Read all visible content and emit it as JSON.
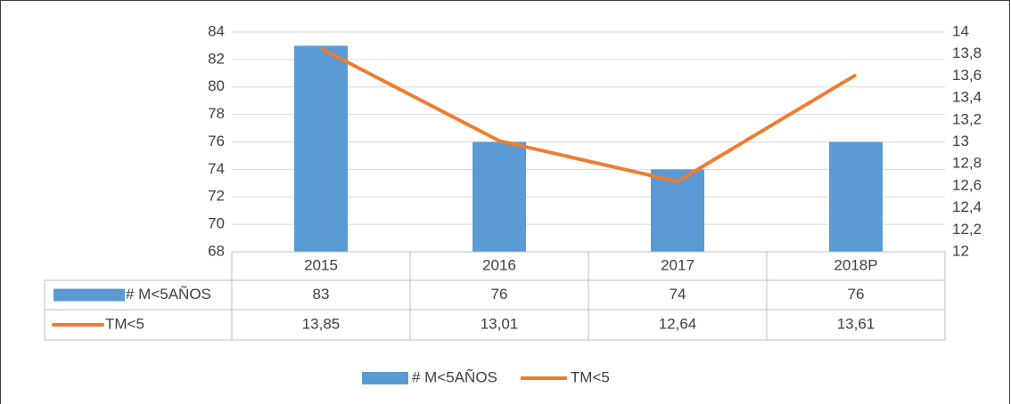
{
  "chart_data": {
    "type": "combo",
    "categories": [
      "2015",
      "2016",
      "2017",
      "2018P"
    ],
    "series": [
      {
        "name": "# M<5AÑOS",
        "type": "bar",
        "color": "#5b9bd5",
        "values": [
          83,
          76,
          74,
          76
        ]
      },
      {
        "name": "TM<5",
        "type": "line",
        "color": "#ed7d31",
        "axis": "y2",
        "values": [
          13.85,
          13.01,
          12.64,
          13.61
        ],
        "value_labels": [
          "13,85",
          "13,01",
          "12,64",
          "13,61"
        ]
      }
    ],
    "ylim": [
      68,
      84
    ],
    "yticks": [
      68,
      70,
      72,
      74,
      76,
      78,
      80,
      82,
      84
    ],
    "y2lim": [
      12,
      14
    ],
    "y2ticks": [
      12,
      {
        "value": 12.2,
        "label": "12,2"
      },
      {
        "value": 12.4,
        "label": "12,4"
      },
      {
        "value": 12.6,
        "label": "12,6"
      },
      {
        "value": 12.8,
        "label": "12,8"
      },
      13,
      {
        "value": 13.2,
        "label": "13,2"
      },
      {
        "value": 13.4,
        "label": "13,4"
      },
      {
        "value": 13.6,
        "label": "13,6"
      },
      {
        "value": 13.8,
        "label": "13,8"
      },
      14
    ],
    "grid": true,
    "data_table": true,
    "legend": "bottom"
  }
}
